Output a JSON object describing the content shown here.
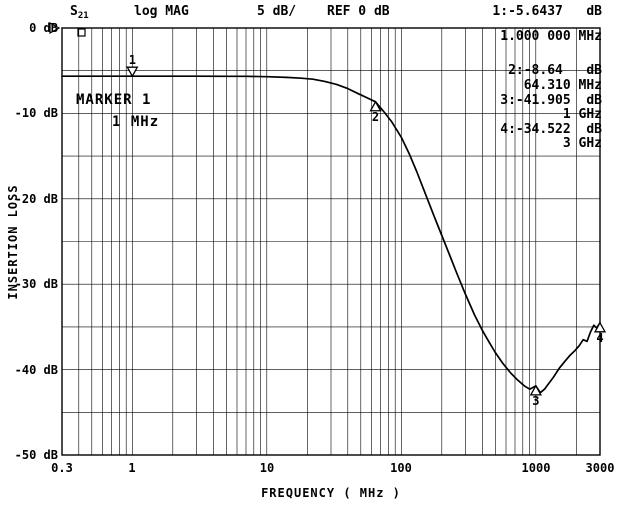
{
  "header": {
    "s_param": "S",
    "s_param_sub": "21",
    "format": "log MAG",
    "scale": "5 dB/",
    "ref_level": "REF 0 dB",
    "marker1_readout": "1:-5.6437   dB"
  },
  "marker_table": {
    "m1_freq": "1.000 000 MHz",
    "m2_value": "2:-8.64   dB",
    "m2_freq": "64.310 MHz",
    "m3_value": "3:-41.905  dB",
    "m3_freq": "1 GHz",
    "m4_value": "4:-34.522  dB",
    "m4_freq": "3 GHz"
  },
  "annotations": {
    "marker_name": "MARKER 1",
    "marker_freq": "1 MHz"
  },
  "axes": {
    "y_axis_title": "INSERTION LOSS",
    "x_axis_title": "FREQUENCY ( MHz )",
    "y_ticks": [
      "0 dB",
      "-10 dB",
      "-20 dB",
      "-30 dB",
      "-40 dB",
      "-50 dB"
    ],
    "x_ticks": [
      "0.3",
      "1",
      "10",
      "100",
      "1000",
      "3000"
    ]
  },
  "chart_data": {
    "type": "line",
    "title": "S21 log MAG 5 dB/ REF 0 dB",
    "xlabel": "FREQUENCY ( MHz )",
    "ylabel": "INSERTION LOSS",
    "x_scale": "log",
    "x_range_mhz": [
      0.3,
      3000
    ],
    "y_range_db": [
      -50,
      0
    ],
    "y_div_db": 5,
    "grid": true,
    "legend": "none",
    "series": [
      {
        "name": "S21 insertion loss (dB)",
        "points_mhz_db": [
          [
            0.3,
            -5.64
          ],
          [
            0.5,
            -5.64
          ],
          [
            0.8,
            -5.64
          ],
          [
            1,
            -5.6437
          ],
          [
            1.5,
            -5.64
          ],
          [
            2,
            -5.64
          ],
          [
            3,
            -5.64
          ],
          [
            5,
            -5.65
          ],
          [
            7,
            -5.66
          ],
          [
            10,
            -5.7
          ],
          [
            14,
            -5.78
          ],
          [
            18,
            -5.88
          ],
          [
            22,
            -6.0
          ],
          [
            27,
            -6.25
          ],
          [
            33,
            -6.6
          ],
          [
            40,
            -7.1
          ],
          [
            48,
            -7.7
          ],
          [
            56,
            -8.2
          ],
          [
            64.31,
            -8.64
          ],
          [
            75,
            -9.9
          ],
          [
            85,
            -11.0
          ],
          [
            100,
            -12.8
          ],
          [
            115,
            -14.8
          ],
          [
            130,
            -16.8
          ],
          [
            150,
            -19.3
          ],
          [
            175,
            -22.0
          ],
          [
            200,
            -24.3
          ],
          [
            230,
            -26.7
          ],
          [
            260,
            -28.8
          ],
          [
            300,
            -31.2
          ],
          [
            350,
            -33.6
          ],
          [
            400,
            -35.4
          ],
          [
            450,
            -36.8
          ],
          [
            500,
            -38.0
          ],
          [
            570,
            -39.3
          ],
          [
            650,
            -40.4
          ],
          [
            730,
            -41.2
          ],
          [
            820,
            -41.9
          ],
          [
            900,
            -42.3
          ],
          [
            1000,
            -41.905
          ],
          [
            1080,
            -42.7
          ],
          [
            1160,
            -42.3
          ],
          [
            1250,
            -41.6
          ],
          [
            1350,
            -40.9
          ],
          [
            1500,
            -39.8
          ],
          [
            1650,
            -39.0
          ],
          [
            1800,
            -38.3
          ],
          [
            1950,
            -37.8
          ],
          [
            2100,
            -37.2
          ],
          [
            2250,
            -36.5
          ],
          [
            2400,
            -36.7
          ],
          [
            2550,
            -35.6
          ],
          [
            2700,
            -34.8
          ],
          [
            2820,
            -35.1
          ],
          [
            2900,
            -34.9
          ],
          [
            3000,
            -34.522
          ]
        ]
      }
    ],
    "markers": [
      {
        "n": "1",
        "freq_mhz": 1.0,
        "db": -5.6437,
        "label": "above"
      },
      {
        "n": "2",
        "freq_mhz": 64.31,
        "db": -8.64,
        "label": "below"
      },
      {
        "n": "3",
        "freq_mhz": 1000,
        "db": -41.905,
        "label": "below"
      },
      {
        "n": "4",
        "freq_mhz": 3000,
        "db": -34.522,
        "label": "below"
      }
    ],
    "ref_line_db": 0
  }
}
